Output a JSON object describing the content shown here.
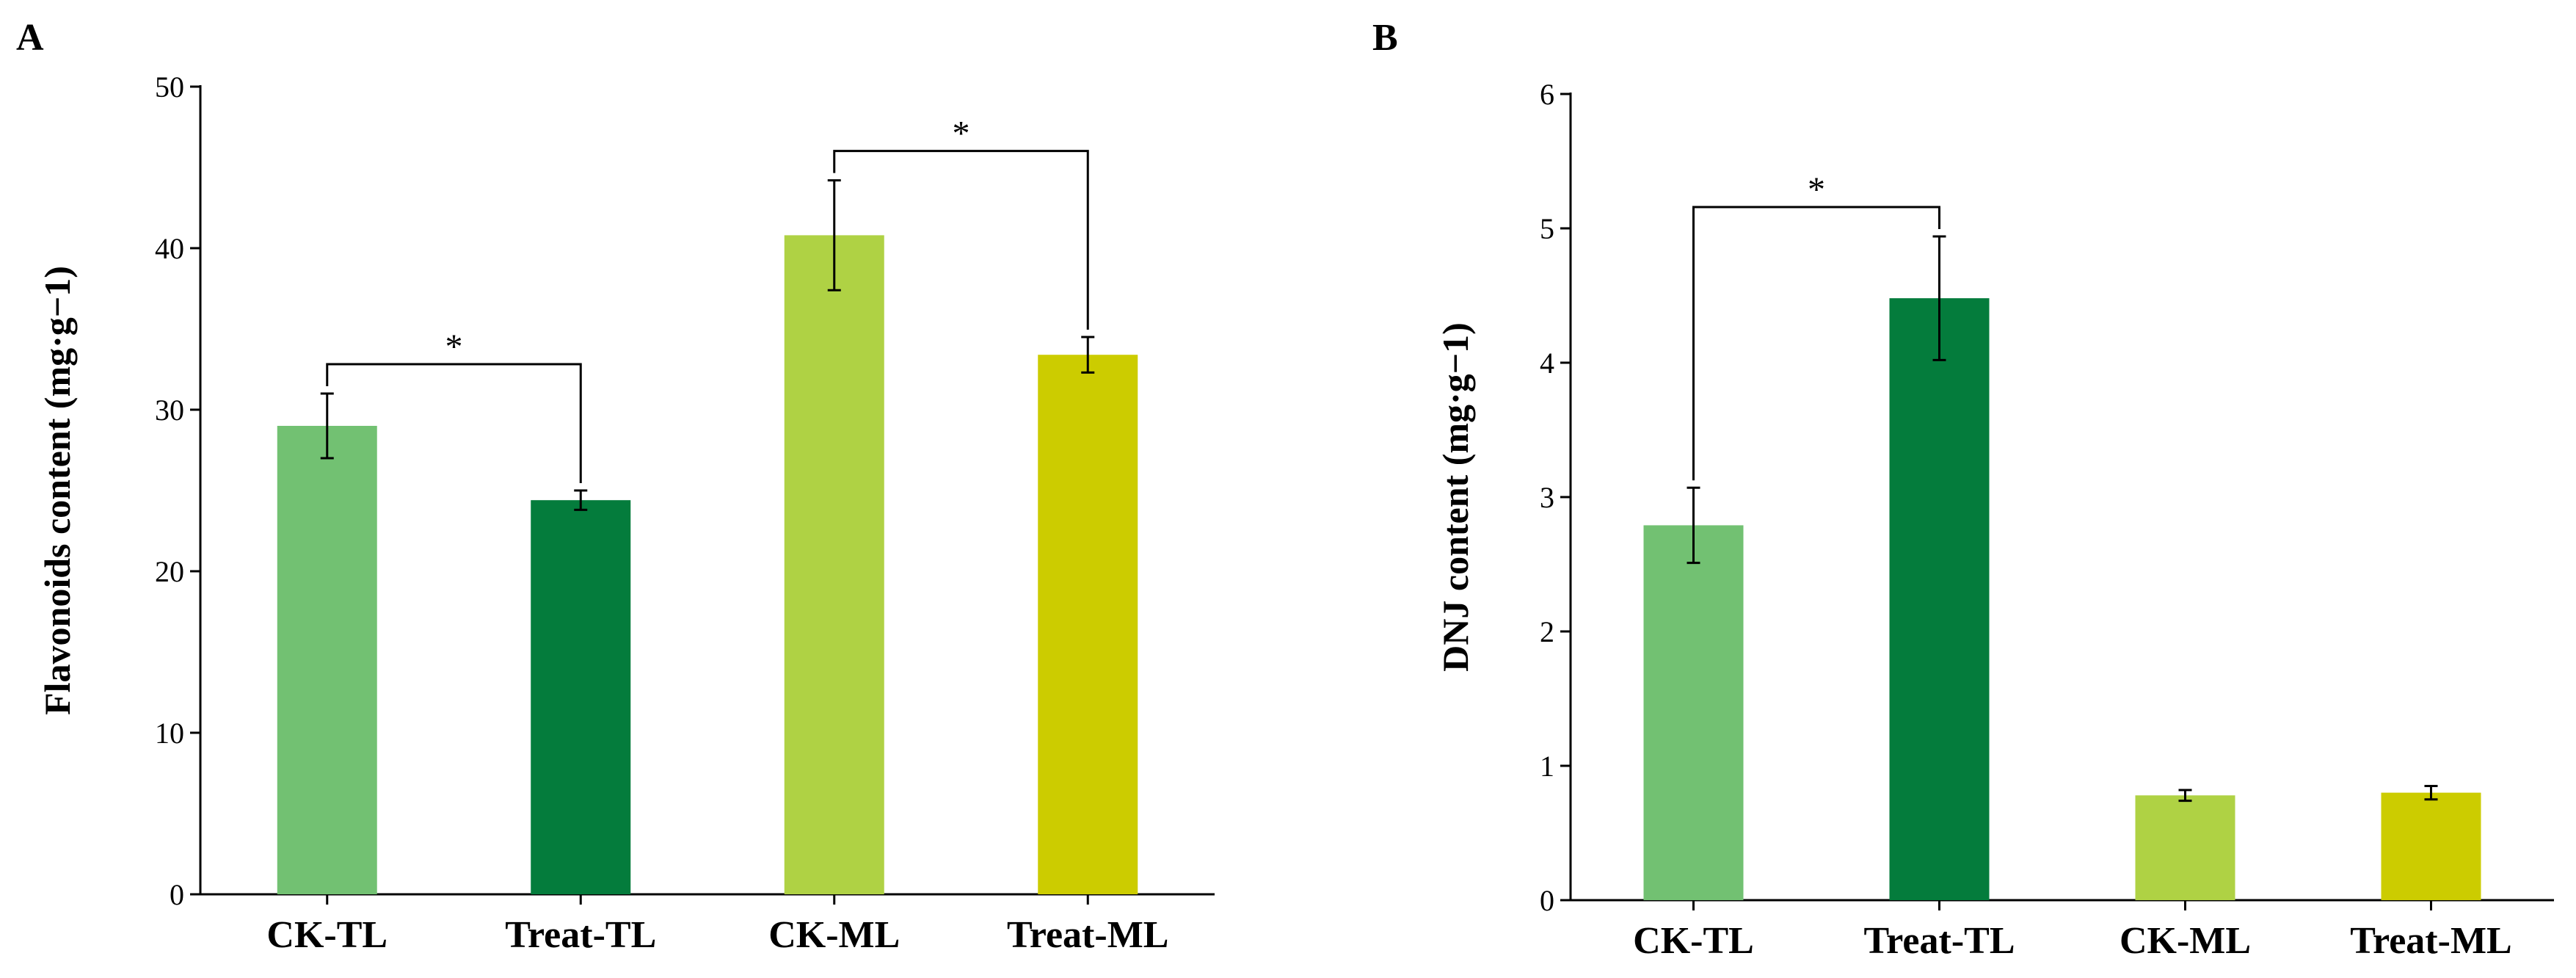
{
  "chart_data": [
    {
      "type": "bar",
      "panel_label": "A",
      "title": "",
      "xlabel": "",
      "ylabel": "Flavonoids content (mg·g−1)",
      "ylim": [
        0,
        50
      ],
      "yticks": [
        0,
        10,
        20,
        30,
        40,
        50
      ],
      "categories": [
        "CK-TL",
        "Treat-TL",
        "CK-ML",
        "Treat-ML"
      ],
      "values": [
        29.0,
        24.4,
        40.8,
        33.4
      ],
      "errors": [
        2.0,
        0.6,
        3.4,
        1.1
      ],
      "colors": [
        "#72c172",
        "#047c3c",
        "#afd244",
        "#cccc00"
      ],
      "significance": [
        {
          "from": 0,
          "to": 1,
          "label": "*"
        },
        {
          "from": 2,
          "to": 3,
          "label": "*"
        }
      ]
    },
    {
      "type": "bar",
      "panel_label": "B",
      "title": "",
      "xlabel": "",
      "ylabel": "DNJ content (mg·g−1)",
      "ylim": [
        0,
        6
      ],
      "yticks": [
        0,
        1,
        2,
        3,
        4,
        5,
        6
      ],
      "categories": [
        "CK-TL",
        "Treat-TL",
        "CK-ML",
        "Treat-ML"
      ],
      "values": [
        2.79,
        4.48,
        0.78,
        0.8
      ],
      "errors": [
        0.28,
        0.46,
        0.04,
        0.05
      ],
      "colors": [
        "#72c172",
        "#047c3c",
        "#afd244",
        "#cccc00"
      ],
      "significance": [
        {
          "from": 0,
          "to": 1,
          "label": "*"
        }
      ]
    }
  ]
}
